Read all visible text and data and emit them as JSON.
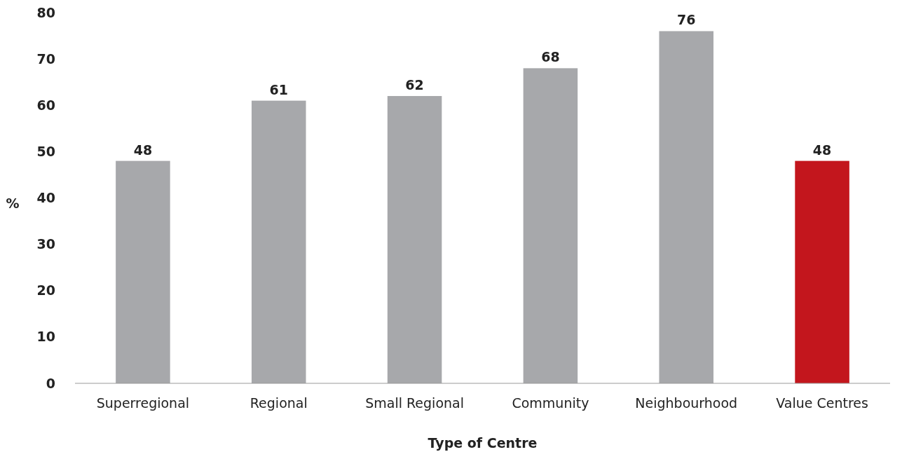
{
  "chart_data": {
    "type": "bar",
    "xlabel": "Type of Centre",
    "ylabel": "%",
    "categories": [
      "Superregional",
      "Regional",
      "Small Regional",
      "Community",
      "Neighbourhood",
      "Value Centres"
    ],
    "values": [
      48,
      61,
      62,
      68,
      76,
      48
    ],
    "colors": [
      "#a7a8ab",
      "#a7a8ab",
      "#a7a8ab",
      "#a7a8ab",
      "#a7a8ab",
      "#c3161d"
    ],
    "ylim": [
      0,
      80
    ],
    "yticks": [
      0,
      10,
      20,
      30,
      40,
      50,
      60,
      70,
      80
    ],
    "grid": false,
    "data_labels": true
  }
}
